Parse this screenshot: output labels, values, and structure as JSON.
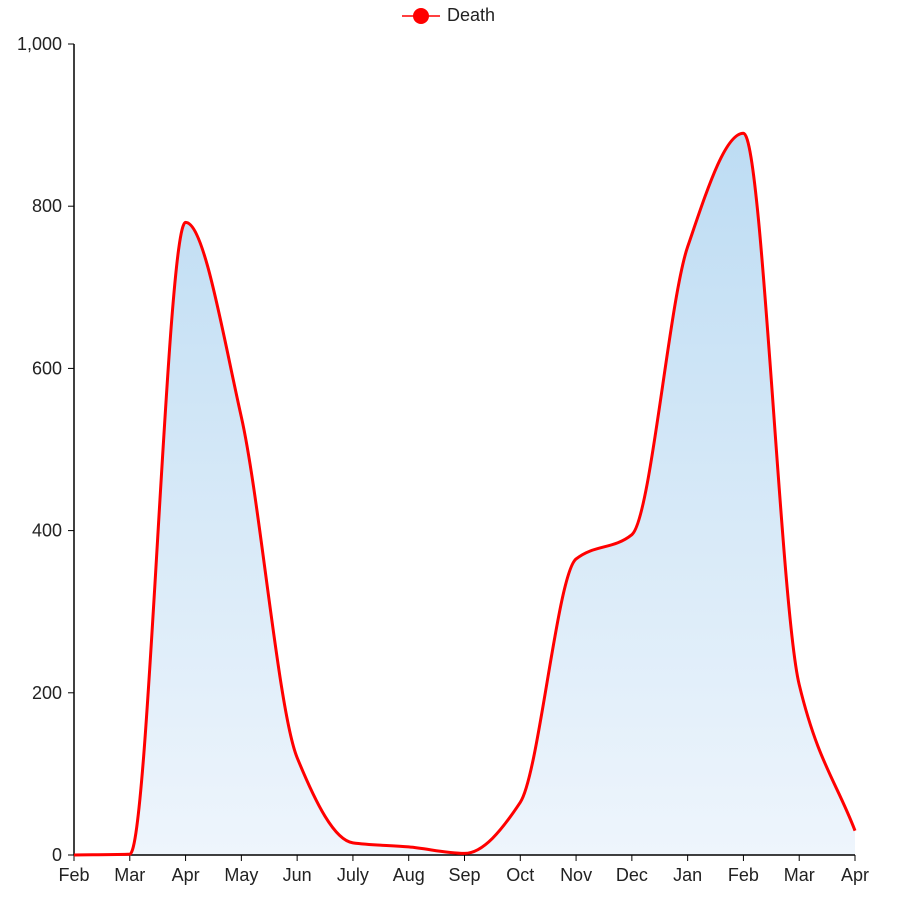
{
  "chart_data": {
    "type": "area",
    "x": [
      "Feb",
      "Mar",
      "Apr",
      "May",
      "Jun",
      "July",
      "Aug",
      "Sep",
      "Oct",
      "Nov",
      "Dec",
      "Jan",
      "Feb",
      "Mar",
      "Apr"
    ],
    "series": [
      {
        "name": "Death",
        "values": [
          0,
          1,
          780,
          540,
          120,
          15,
          10,
          2,
          65,
          365,
          395,
          750,
          890,
          210,
          30
        ],
        "color": "#ff0000"
      }
    ],
    "ylim": [
      0,
      1000
    ],
    "yticks": [
      0,
      200,
      400,
      600,
      800,
      1000
    ],
    "ytick_labels": [
      "0",
      "200",
      "400",
      "600",
      "800",
      "1,000"
    ],
    "fill_gradient": [
      "#bddcf3",
      "#eef5fc"
    ],
    "legend_position": "top-center",
    "grid": false
  }
}
